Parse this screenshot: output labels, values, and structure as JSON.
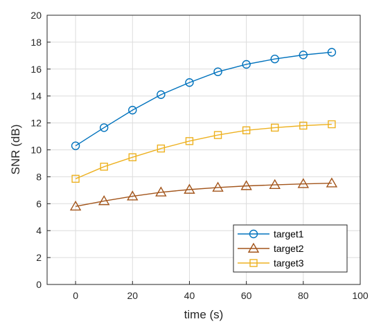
{
  "chart_data": {
    "type": "line",
    "title": "",
    "xlabel": "time (s)",
    "ylabel": "SNR (dB)",
    "xlim": [
      -10,
      100
    ],
    "ylim": [
      0,
      20
    ],
    "xticks": [
      0,
      20,
      40,
      60,
      80,
      100
    ],
    "yticks": [
      0,
      2,
      4,
      6,
      8,
      10,
      12,
      14,
      16,
      18,
      20
    ],
    "grid": true,
    "legend_position": "bottom-right",
    "x": [
      0,
      10,
      20,
      30,
      40,
      50,
      60,
      70,
      80,
      90
    ],
    "series": [
      {
        "name": "target1",
        "marker": "circle",
        "color": "#0072BD",
        "values": [
          10.3,
          11.65,
          12.95,
          14.1,
          15.0,
          15.8,
          16.35,
          16.75,
          17.05,
          17.25
        ]
      },
      {
        "name": "target2",
        "marker": "triangle",
        "color": "#A2541A",
        "values": [
          5.8,
          6.2,
          6.55,
          6.85,
          7.05,
          7.2,
          7.32,
          7.4,
          7.47,
          7.52
        ]
      },
      {
        "name": "target3",
        "marker": "square",
        "color": "#EDB120",
        "values": [
          7.85,
          8.75,
          9.45,
          10.1,
          10.65,
          11.1,
          11.45,
          11.65,
          11.8,
          11.9
        ]
      }
    ]
  }
}
